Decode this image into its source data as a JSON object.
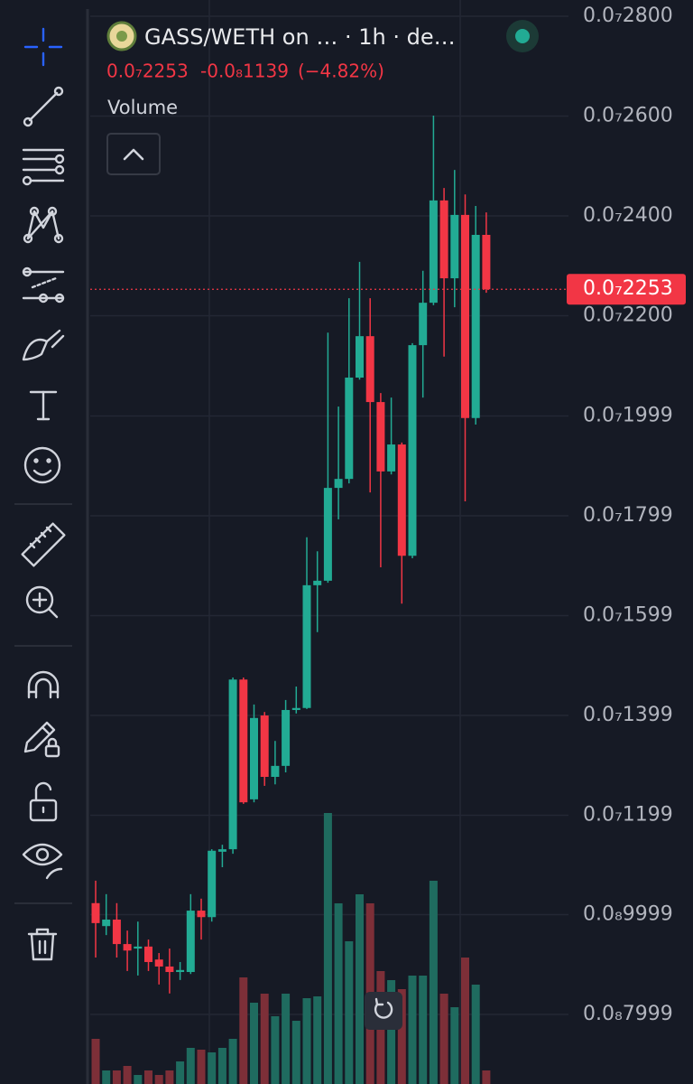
{
  "chart_data": {
    "type": "candlestick",
    "title": "GASS/WETH on … · 1h · de…",
    "current_price": {
      "value": 2.253e-08,
      "label": "0.0₇2253"
    },
    "change": {
      "value": -1.139e-09,
      "label": "-0.0₈1139"
    },
    "change_percent": {
      "value": -4.82,
      "label": "(−4.82%)"
    },
    "volume_label": "Volume",
    "up_color": "#22ab94",
    "down_color": "#f23645",
    "volume_up_color": "#1f6b5f",
    "volume_down_color": "#7d2f38",
    "ylim": [
      6.606e-09,
      2.8326e-08
    ],
    "yticks": [
      {
        "value": 2.8e-08,
        "label": "0.0₇2800"
      },
      {
        "value": 2.6e-08,
        "label": "0.0₇2600"
      },
      {
        "value": 2.4e-08,
        "label": "0.0₇2400"
      },
      {
        "value": 2.2e-08,
        "label": "0.0₇2200"
      },
      {
        "value": 1.999e-08,
        "label": "0.0₇1999"
      },
      {
        "value": 1.799e-08,
        "label": "0.0₇1799"
      },
      {
        "value": 1.599e-08,
        "label": "0.0₇1599"
      },
      {
        "value": 1.399e-08,
        "label": "0.0₇1399"
      },
      {
        "value": 1.199e-08,
        "label": "0.0₇1199"
      },
      {
        "value": 9.999e-09,
        "label": "0.0₈9999"
      },
      {
        "value": 7.999e-09,
        "label": "0.0₈7999"
      }
    ],
    "grid": true,
    "open": [
      1.023e-08,
      9.77e-09,
      9.9e-09,
      9.41e-09,
      9.32e-09,
      9.36e-09,
      9.1e-09,
      8.96e-09,
      8.85e-09,
      8.85e-09,
      1.008e-08,
      9.95e-09,
      1.126e-08,
      1.131e-08,
      1.471e-08,
      1.231e-08,
      1.399e-08,
      1.276e-08,
      1.298e-08,
      1.41e-08,
      1.414e-08,
      1.66e-08,
      1.669e-08,
      1.855e-08,
      1.873e-08,
      2.076e-08,
      2.159e-08,
      2.027e-08,
      1.888e-08,
      1.942e-08,
      1.719e-08,
      2.141e-08,
      2.226e-08,
      2.431e-08,
      2.275e-08,
      2.402e-08,
      1.995e-08,
      2.362e-08
    ],
    "high": [
      1.068e-08,
      1.041e-08,
      1.023e-08,
      9.68e-09,
      9.86e-09,
      9.5e-09,
      9.23e-09,
      9.32e-09,
      9.05e-09,
      1.041e-08,
      1.032e-08,
      1.131e-08,
      1.14e-08,
      1.475e-08,
      1.475e-08,
      1.421e-08,
      1.406e-08,
      1.348e-08,
      1.43e-08,
      1.457e-08,
      1.756e-08,
      1.728e-08,
      2.166e-08,
      2.018e-08,
      2.235e-08,
      2.308e-08,
      2.235e-08,
      2.045e-08,
      2.036e-08,
      1.946e-08,
      2.145e-08,
      2.29e-08,
      2.601e-08,
      2.456e-08,
      2.492e-08,
      2.443e-08,
      2.42e-08,
      2.407e-08
    ],
    "low": [
      9.14e-09,
      9.59e-09,
      9.14e-09,
      8.87e-09,
      8.78e-09,
      8.87e-09,
      8.6e-09,
      8.42e-09,
      8.69e-09,
      8.81e-09,
      9.5e-09,
      9.86e-09,
      1.095e-08,
      1.122e-08,
      1.222e-08,
      1.225e-08,
      1.258e-08,
      1.261e-08,
      1.285e-08,
      1.403e-08,
      1.412e-08,
      1.566e-08,
      1.665e-08,
      1.792e-08,
      1.864e-08,
      2.072e-08,
      1.846e-08,
      1.696e-08,
      1.882e-08,
      1.623e-08,
      1.714e-08,
      2.036e-08,
      2.221e-08,
      2.118e-08,
      2.217e-08,
      1.828e-08,
      1.982e-08,
      2.246e-08
    ],
    "close": [
      9.83e-09,
      9.9e-09,
      9.41e-09,
      9.28e-09,
      9.36e-09,
      9.05e-09,
      8.96e-09,
      8.85e-09,
      8.89e-09,
      1.008e-08,
      9.95e-09,
      1.128e-08,
      1.131e-08,
      1.471e-08,
      1.225e-08,
      1.394e-08,
      1.276e-08,
      1.298e-08,
      1.41e-08,
      1.414e-08,
      1.66e-08,
      1.669e-08,
      1.855e-08,
      1.873e-08,
      2.076e-08,
      2.159e-08,
      2.027e-08,
      1.888e-08,
      1.942e-08,
      1.719e-08,
      2.141e-08,
      2.226e-08,
      2.431e-08,
      2.275e-08,
      2.402e-08,
      1.995e-08,
      2.362e-08,
      2.253e-08
    ],
    "volume": [
      50,
      15,
      15,
      20,
      10,
      15,
      10,
      15,
      25,
      40,
      38,
      35,
      40,
      50,
      118,
      90,
      100,
      75,
      100,
      70,
      95,
      97,
      300,
      200,
      158,
      210,
      200,
      125,
      115,
      105,
      120,
      120,
      225,
      100,
      85,
      140,
      110,
      15
    ]
  }
}
